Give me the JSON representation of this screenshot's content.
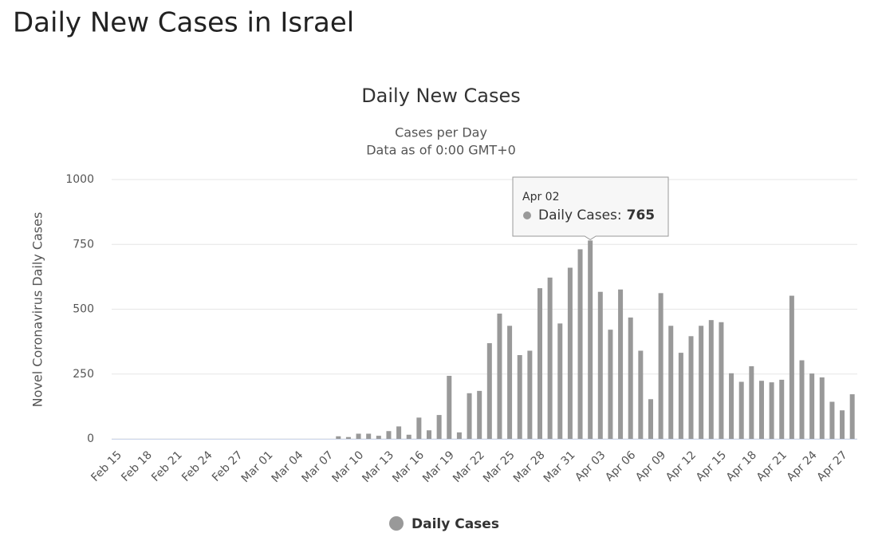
{
  "page_title": "Daily New Cases in Israel",
  "chart_data": {
    "type": "bar",
    "title": "Daily New Cases",
    "subtitle": [
      "Cases per Day",
      "Data as of 0:00 GMT+0"
    ],
    "y_axis_label": "Novel Coronavirus Daily Cases",
    "categories": [
      "Feb 15",
      null,
      null,
      "Feb 18",
      null,
      null,
      "Feb 21",
      null,
      null,
      "Feb 24",
      null,
      null,
      "Feb 27",
      null,
      null,
      "Mar 01",
      null,
      null,
      "Mar 04",
      null,
      null,
      "Mar 07",
      null,
      null,
      "Mar 10",
      null,
      null,
      "Mar 13",
      null,
      null,
      "Mar 16",
      null,
      null,
      "Mar 19",
      null,
      null,
      "Mar 22",
      null,
      null,
      "Mar 25",
      null,
      null,
      "Mar 28",
      null,
      null,
      "Mar 31",
      null,
      null,
      "Apr 03",
      null,
      null,
      "Apr 06",
      null,
      null,
      "Apr 09",
      null,
      null,
      "Apr 12",
      null,
      null,
      "Apr 15",
      null,
      null,
      "Apr 18",
      null,
      null,
      "Apr 21",
      null,
      null,
      "Apr 24",
      null,
      null,
      "Apr 27",
      null
    ],
    "series": [
      {
        "name": "Daily Cases",
        "color": "#999999",
        "values": [
          0,
          0,
          0,
          0,
          0,
          0,
          0,
          0,
          0,
          0,
          0,
          0,
          0,
          0,
          0,
          0,
          0,
          0,
          0,
          0,
          0,
          0,
          10,
          7,
          20,
          20,
          12,
          30,
          48,
          16,
          82,
          33,
          92,
          243,
          25,
          176,
          185,
          369,
          483,
          436,
          323,
          340,
          581,
          622,
          445,
          660,
          731,
          765,
          567,
          421,
          576,
          468,
          340,
          153,
          562,
          436,
          332,
          396,
          436,
          458,
          450,
          253,
          220,
          280,
          224,
          218,
          228,
          552,
          303,
          252,
          237,
          143,
          110,
          172
        ]
      }
    ],
    "ylim": [
      0,
      1000
    ],
    "yticks": [
      0,
      250,
      500,
      750,
      1000
    ],
    "grid": true,
    "legend": "bottom",
    "tooltip": {
      "date": "Apr 02",
      "label": "Daily Cases:",
      "index": 47
    }
  }
}
